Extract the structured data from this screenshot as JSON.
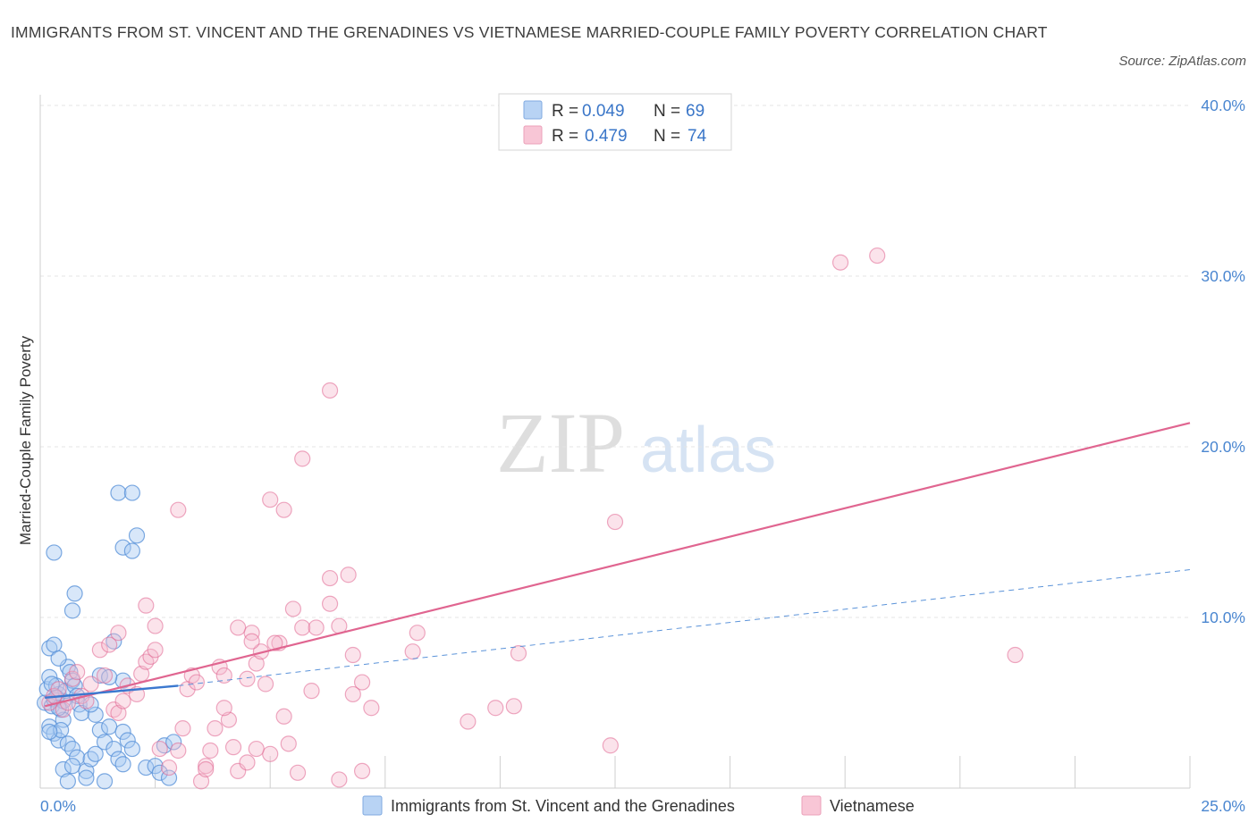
{
  "title": "IMMIGRANTS FROM ST. VINCENT AND THE GRENADINES VS VIETNAMESE MARRIED-COUPLE FAMILY POVERTY CORRELATION CHART",
  "source": "Source: ZipAtlas.com",
  "watermark": {
    "zip": "ZIP",
    "atlas": "atlas"
  },
  "legend": {
    "rows": [
      {
        "r_label": "R =",
        "r_value": "0.049",
        "n_label": "N =",
        "n_value": "69",
        "color": "#8ab4ea"
      },
      {
        "r_label": "R =",
        "r_value": "0.479",
        "n_label": "N =",
        "n_value": "74",
        "color": "#f2a9c0"
      }
    ]
  },
  "bottom_legend": {
    "items": [
      {
        "label": "Immigrants from St. Vincent and the Grenadines",
        "color": "#8ab4ea"
      },
      {
        "label": "Vietnamese",
        "color": "#f2a9c0"
      }
    ]
  },
  "chart_data": {
    "type": "scatter",
    "xlabel": "",
    "ylabel": "Married-Couple Family Poverty",
    "xlim": [
      0,
      25
    ],
    "ylim": [
      0,
      40
    ],
    "x_tick_labels": [
      "0.0%",
      "25.0%"
    ],
    "y_ticks": [
      10,
      20,
      30,
      40
    ],
    "y_tick_labels": [
      "10.0%",
      "20.0%",
      "30.0%",
      "40.0%"
    ],
    "grid": true,
    "legend_position": "top-center",
    "series": [
      {
        "name": "Immigrants from St. Vincent and the Grenadines",
        "color": "#5b93d9",
        "fill": "#a9c9f1",
        "trend_solid": [
          [
            0.1,
            5.3
          ],
          [
            3.0,
            6.0
          ]
        ],
        "trend_dashed": [
          [
            3.0,
            6.0
          ],
          [
            25.0,
            12.8
          ]
        ],
        "points": [
          [
            0.1,
            5.0
          ],
          [
            0.15,
            5.8
          ],
          [
            0.2,
            6.5
          ],
          [
            0.25,
            4.8
          ],
          [
            0.3,
            5.2
          ],
          [
            0.35,
            6.0
          ],
          [
            0.4,
            5.5
          ],
          [
            0.45,
            4.6
          ],
          [
            0.5,
            5.1
          ],
          [
            0.55,
            5.7
          ],
          [
            0.2,
            8.2
          ],
          [
            0.3,
            8.4
          ],
          [
            0.6,
            7.1
          ],
          [
            0.65,
            6.8
          ],
          [
            0.7,
            6.3
          ],
          [
            0.75,
            6.0
          ],
          [
            0.8,
            5.4
          ],
          [
            0.85,
            4.9
          ],
          [
            0.9,
            4.4
          ],
          [
            0.5,
            4.0
          ],
          [
            0.2,
            3.6
          ],
          [
            0.3,
            3.2
          ],
          [
            0.4,
            2.8
          ],
          [
            0.45,
            3.4
          ],
          [
            0.6,
            2.6
          ],
          [
            0.7,
            2.3
          ],
          [
            0.8,
            1.8
          ],
          [
            0.5,
            1.1
          ],
          [
            0.6,
            0.4
          ],
          [
            0.7,
            1.3
          ],
          [
            1.0,
            1.0
          ],
          [
            1.1,
            1.7
          ],
          [
            1.2,
            2.0
          ],
          [
            1.3,
            3.4
          ],
          [
            1.4,
            2.7
          ],
          [
            1.5,
            3.6
          ],
          [
            1.6,
            2.3
          ],
          [
            1.7,
            1.7
          ],
          [
            1.8,
            1.4
          ],
          [
            1.2,
            4.3
          ],
          [
            1.1,
            4.9
          ],
          [
            1.3,
            6.6
          ],
          [
            1.6,
            8.6
          ],
          [
            1.7,
            17.3
          ],
          [
            2.0,
            17.3
          ],
          [
            2.1,
            14.8
          ],
          [
            1.8,
            14.1
          ],
          [
            2.0,
            13.9
          ],
          [
            0.3,
            13.8
          ],
          [
            0.7,
            10.4
          ],
          [
            0.75,
            11.4
          ],
          [
            1.8,
            3.3
          ],
          [
            1.9,
            2.8
          ],
          [
            2.0,
            2.3
          ],
          [
            2.3,
            1.2
          ],
          [
            2.5,
            1.3
          ],
          [
            2.6,
            0.9
          ],
          [
            2.8,
            0.6
          ],
          [
            2.7,
            2.5
          ],
          [
            2.9,
            2.7
          ],
          [
            1.4,
            0.4
          ],
          [
            1.0,
            0.6
          ],
          [
            0.4,
            7.6
          ],
          [
            0.25,
            6.1
          ],
          [
            0.35,
            5.3
          ],
          [
            0.2,
            3.3
          ],
          [
            1.8,
            6.3
          ],
          [
            1.5,
            6.5
          ],
          [
            0.4,
            4.7
          ]
        ]
      },
      {
        "name": "Vietnamese",
        "color": "#e06590",
        "fill": "#f6b9cc",
        "trend_solid": [
          [
            0.1,
            4.8
          ],
          [
            25.0,
            21.4
          ]
        ],
        "points": [
          [
            0.2,
            5.0
          ],
          [
            0.3,
            5.4
          ],
          [
            0.4,
            5.8
          ],
          [
            0.5,
            4.6
          ],
          [
            0.6,
            5.0
          ],
          [
            0.7,
            6.4
          ],
          [
            0.8,
            6.8
          ],
          [
            0.9,
            5.4
          ],
          [
            1.0,
            5.1
          ],
          [
            1.1,
            6.1
          ],
          [
            1.3,
            8.1
          ],
          [
            1.4,
            6.6
          ],
          [
            1.5,
            8.4
          ],
          [
            1.6,
            4.6
          ],
          [
            1.7,
            4.4
          ],
          [
            1.8,
            5.1
          ],
          [
            1.9,
            6.0
          ],
          [
            2.1,
            5.5
          ],
          [
            2.2,
            6.7
          ],
          [
            2.3,
            7.4
          ],
          [
            2.4,
            7.7
          ],
          [
            2.5,
            8.1
          ],
          [
            1.7,
            9.1
          ],
          [
            2.3,
            10.7
          ],
          [
            2.5,
            9.5
          ],
          [
            2.6,
            2.3
          ],
          [
            2.8,
            1.2
          ],
          [
            3.0,
            2.2
          ],
          [
            3.1,
            3.5
          ],
          [
            3.2,
            5.8
          ],
          [
            3.3,
            6.6
          ],
          [
            3.4,
            6.2
          ],
          [
            3.5,
            0.4
          ],
          [
            3.6,
            1.3
          ],
          [
            3.7,
            2.2
          ],
          [
            3.8,
            3.5
          ],
          [
            3.9,
            7.1
          ],
          [
            4.0,
            6.6
          ],
          [
            4.1,
            4.0
          ],
          [
            4.2,
            2.4
          ],
          [
            4.3,
            9.4
          ],
          [
            4.5,
            6.4
          ],
          [
            4.6,
            9.1
          ],
          [
            4.7,
            7.3
          ],
          [
            4.8,
            8.0
          ],
          [
            4.9,
            6.1
          ],
          [
            5.0,
            2.0
          ],
          [
            5.2,
            8.5
          ],
          [
            5.4,
            2.6
          ],
          [
            3.0,
            16.3
          ],
          [
            4.3,
            1.0
          ],
          [
            3.6,
            1.1
          ],
          [
            4.7,
            2.3
          ],
          [
            5.7,
            9.4
          ],
          [
            5.5,
            10.5
          ],
          [
            5.1,
            8.5
          ],
          [
            4.6,
            8.6
          ],
          [
            5.3,
            4.2
          ],
          [
            5.6,
            0.9
          ],
          [
            4.0,
            4.7
          ],
          [
            5.0,
            16.9
          ],
          [
            5.3,
            16.3
          ],
          [
            5.7,
            19.3
          ],
          [
            6.3,
            12.3
          ],
          [
            6.7,
            12.5
          ],
          [
            6.3,
            10.8
          ],
          [
            6.5,
            9.5
          ],
          [
            6.0,
            9.4
          ],
          [
            6.8,
            7.8
          ],
          [
            7.0,
            6.2
          ],
          [
            6.3,
            23.3
          ],
          [
            8.1,
            8.0
          ],
          [
            17.4,
            30.8
          ],
          [
            18.2,
            31.2
          ]
        ]
      }
    ],
    "extra_points_vietnamese": [
      [
        7.2,
        4.7
      ],
      [
        6.8,
        5.5
      ],
      [
        8.2,
        9.1
      ],
      [
        9.3,
        3.9
      ],
      [
        9.9,
        4.7
      ],
      [
        10.3,
        4.8
      ],
      [
        10.4,
        7.9
      ],
      [
        12.5,
        15.6
      ],
      [
        12.4,
        2.5
      ],
      [
        21.2,
        7.8
      ],
      [
        6.5,
        0.5
      ],
      [
        7.0,
        1.0
      ],
      [
        4.5,
        1.5
      ],
      [
        5.9,
        5.7
      ]
    ]
  }
}
